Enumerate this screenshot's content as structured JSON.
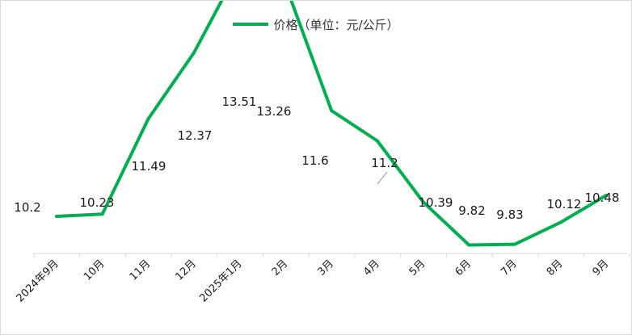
{
  "colors": {
    "line": "#00b050",
    "axis": "#d9d9d9",
    "leader": "#a6a6a6",
    "text": "#1a1a1a"
  },
  "chart_data": {
    "type": "line",
    "categories": [
      "2024年9月",
      "10月",
      "11月",
      "12月",
      "2025年1月",
      "2月",
      "3月",
      "4月",
      "5月",
      "6月",
      "7月",
      "8月",
      "9月"
    ],
    "series": [
      {
        "name": "价格（单位：元/公斤）",
        "values": [
          10.2,
          10.23,
          11.49,
          12.37,
          13.51,
          13.26,
          11.6,
          11.2,
          10.39,
          9.82,
          9.83,
          10.12,
          10.48
        ]
      }
    ],
    "data_labels": [
      "10.2",
      "10.23",
      "11.49",
      "12.37",
      "13.51",
      "13.26",
      "11.6",
      "11.2",
      "10.39",
      "9.82",
      "9.83",
      "10.12",
      "10.48"
    ],
    "legend": "top-center",
    "grid": false
  }
}
